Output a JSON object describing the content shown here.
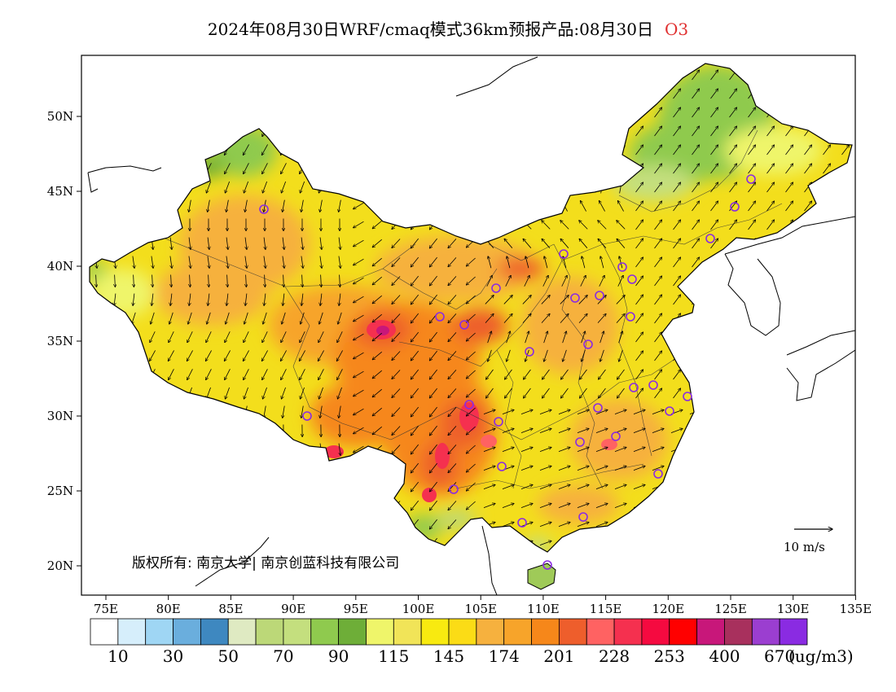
{
  "title": {
    "main": "2024年08月30日WRF/cmaq模式36km预报产品:08月30日",
    "pollutant": "O3"
  },
  "map": {
    "lat_labels": [
      "50N",
      "45N",
      "40N",
      "35N",
      "30N",
      "25N",
      "20N"
    ],
    "lon_labels": [
      "75E",
      "80E",
      "85E",
      "90E",
      "95E",
      "100E",
      "105E",
      "110E",
      "115E",
      "120E",
      "125E",
      "130E",
      "135E"
    ],
    "copyright": "版权所有: 南京大学| 南京创蓝科技有限公司",
    "wind_reference": "10 m/s"
  },
  "colorbar": {
    "colors": [
      "#ffffff",
      "#d6eefb",
      "#9fd6f4",
      "#6aaedd",
      "#3e88c0",
      "#dfeac2",
      "#bcd878",
      "#c4df7e",
      "#8fca4e",
      "#6eae38",
      "#eff56a",
      "#f1e458",
      "#f8ea10",
      "#fbdc16",
      "#f6b13e",
      "#f7a42a",
      "#f6871a",
      "#ee5e2c",
      "#ff6262",
      "#f5304f",
      "#f50a40",
      "#ff0000",
      "#c8177a",
      "#a8305d",
      "#9b3ed0",
      "#8a2be2"
    ],
    "labels": [
      "10",
      "30",
      "50",
      "70",
      "90",
      "115",
      "145",
      "174",
      "201",
      "228",
      "253",
      "400",
      "670"
    ],
    "unit": "(ug/m3)"
  }
}
